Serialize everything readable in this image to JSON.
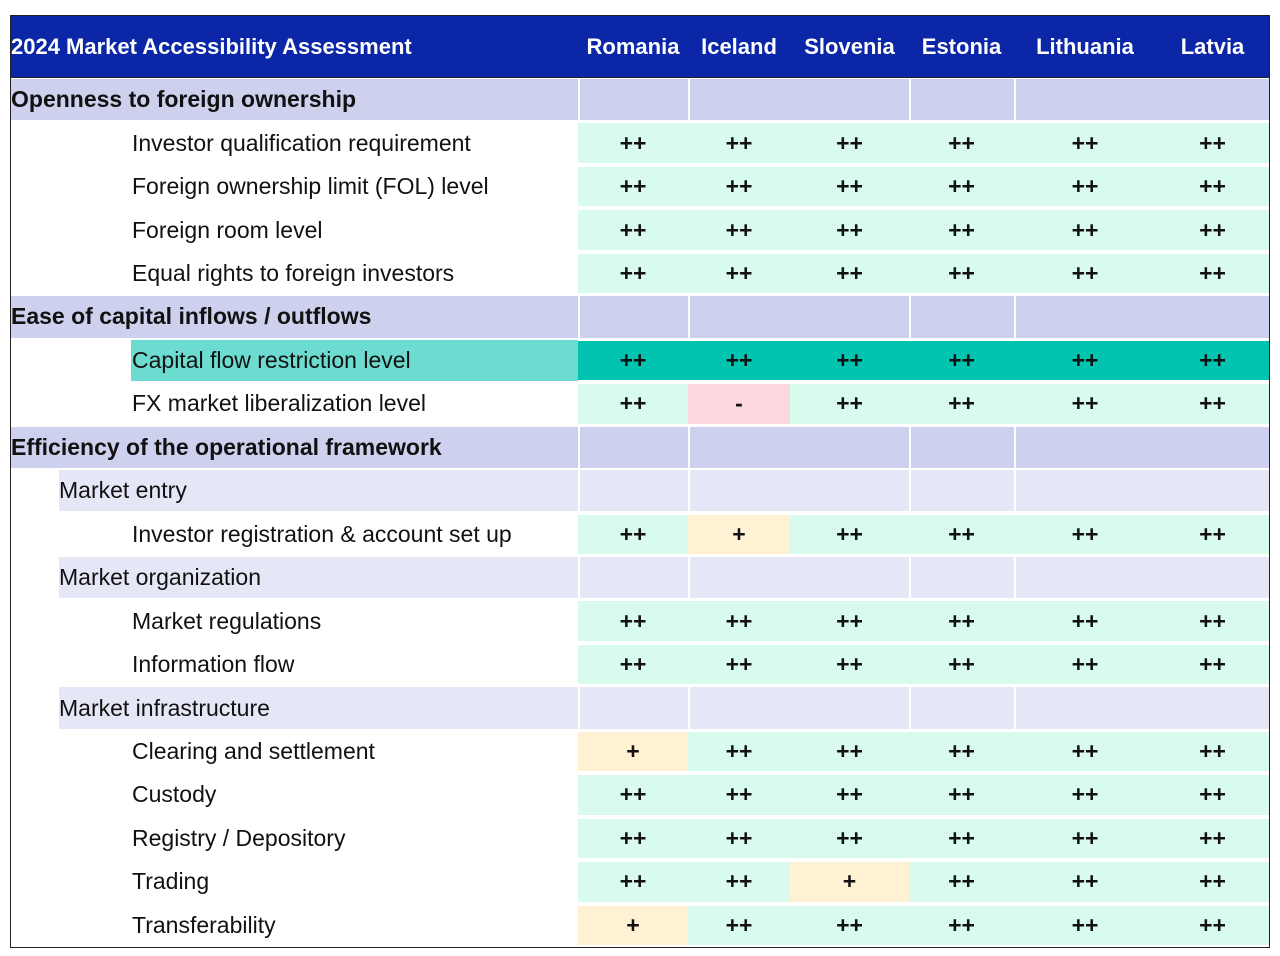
{
  "header": {
    "title": "2024 Market Accessibility Assessment",
    "columns": [
      "Romania",
      "Iceland",
      "Slovenia",
      "Estonia",
      "Lithuania",
      "Latvia"
    ]
  },
  "rows": [
    {
      "kind": "section",
      "label": "Openness to foreign ownership"
    },
    {
      "kind": "item",
      "label": "Investor qualification requirement",
      "values": [
        "++",
        "++",
        "++",
        "++",
        "++",
        "++"
      ]
    },
    {
      "kind": "item",
      "label": "Foreign ownership limit (FOL) level",
      "values": [
        "++",
        "++",
        "++",
        "++",
        "++",
        "++"
      ]
    },
    {
      "kind": "item",
      "label": "Foreign room level",
      "values": [
        "++",
        "++",
        "++",
        "++",
        "++",
        "++"
      ]
    },
    {
      "kind": "item",
      "label": "Equal rights to foreign investors",
      "values": [
        "++",
        "++",
        "++",
        "++",
        "++",
        "++"
      ]
    },
    {
      "kind": "section",
      "label": "Ease of capital inflows / outflows"
    },
    {
      "kind": "item",
      "label": "Capital flow restriction level",
      "values": [
        "++",
        "++",
        "++",
        "++",
        "++",
        "++"
      ],
      "highlighted": true
    },
    {
      "kind": "item",
      "label": "FX market liberalization level",
      "values": [
        "++",
        "-",
        "++",
        "++",
        "++",
        "++"
      ]
    },
    {
      "kind": "section",
      "label": "Efficiency of the operational framework"
    },
    {
      "kind": "subsection",
      "label": "Market entry"
    },
    {
      "kind": "item",
      "label": "Investor registration & account set up",
      "values": [
        "++",
        "+",
        "++",
        "++",
        "++",
        "++"
      ]
    },
    {
      "kind": "subsection",
      "label": "Market organization"
    },
    {
      "kind": "item",
      "label": "Market regulations",
      "values": [
        "++",
        "++",
        "++",
        "++",
        "++",
        "++"
      ]
    },
    {
      "kind": "item",
      "label": "Information flow",
      "values": [
        "++",
        "++",
        "++",
        "++",
        "++",
        "++"
      ]
    },
    {
      "kind": "subsection",
      "label": "Market infrastructure"
    },
    {
      "kind": "item",
      "label": "Clearing and settlement",
      "values": [
        "+",
        "++",
        "++",
        "++",
        "++",
        "++"
      ]
    },
    {
      "kind": "item",
      "label": "Custody",
      "values": [
        "++",
        "++",
        "++",
        "++",
        "++",
        "++"
      ]
    },
    {
      "kind": "item",
      "label": "Registry / Depository",
      "values": [
        "++",
        "++",
        "++",
        "++",
        "++",
        "++"
      ]
    },
    {
      "kind": "item",
      "label": "Trading",
      "values": [
        "++",
        "++",
        "+",
        "++",
        "++",
        "++"
      ]
    },
    {
      "kind": "item",
      "label": "Transferability",
      "values": [
        "+",
        "++",
        "++",
        "++",
        "++",
        "++"
      ]
    }
  ]
}
